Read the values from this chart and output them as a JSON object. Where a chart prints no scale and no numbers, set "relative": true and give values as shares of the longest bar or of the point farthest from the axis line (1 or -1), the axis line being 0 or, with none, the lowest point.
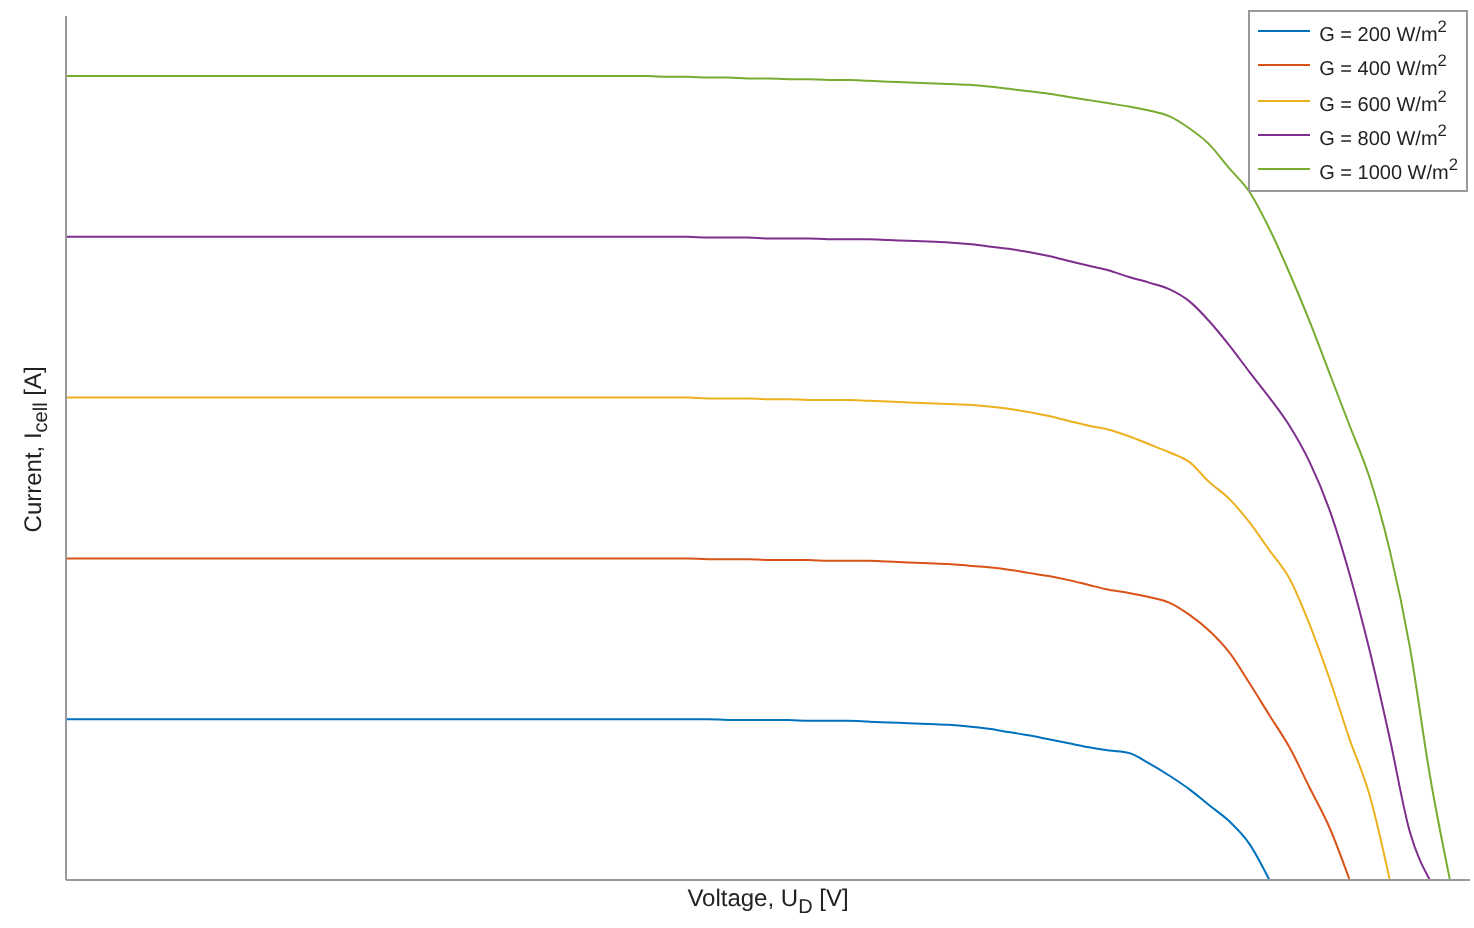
{
  "chart_data": {
    "type": "line",
    "relative": true,
    "xlabel": "Voltage, U$_{D}$ [V]",
    "ylabel": "Current, I$_{cell}$ [A]",
    "legend": "top right",
    "categories": [
      null,
      null,
      null,
      null,
      null,
      null,
      null,
      null,
      null,
      null,
      null,
      null,
      null,
      null,
      null,
      null,
      null,
      null,
      null,
      null,
      null,
      null,
      null,
      null,
      null,
      null,
      null,
      null,
      null,
      null,
      null,
      null,
      null,
      null,
      null,
      null,
      null,
      null,
      null,
      null,
      null,
      null,
      null,
      null,
      null,
      null,
      null,
      null,
      null,
      null,
      null,
      null,
      null,
      null,
      null,
      null,
      null,
      null,
      null,
      null,
      null,
      null,
      null,
      null,
      null,
      null,
      null,
      null,
      null,
      null,
      null
    ],
    "series": [
      {
        "name": "G = 200 W/m$^{2}$",
        "color": "#0072bd",
        "values": [
          0.2,
          0.2,
          0.2,
          0.2,
          0.2,
          0.2,
          0.2,
          0.2,
          0.2,
          0.2,
          0.2,
          0.2,
          0.2,
          0.2,
          0.2,
          0.2,
          0.2,
          0.2,
          0.2,
          0.2,
          0.2,
          0.2,
          0.2,
          0.2,
          0.2,
          0.2,
          0.2,
          0.2,
          0.2,
          0.2,
          0.2,
          0.2,
          0.2,
          0.199,
          0.199,
          0.199,
          0.199,
          0.198,
          0.198,
          0.198,
          0.197,
          0.196,
          0.195,
          0.194,
          0.193,
          0.191,
          0.188,
          0.184,
          0.18,
          0.175,
          0.17,
          0.165,
          0.161,
          0.158,
          0.145,
          0.13,
          0.113,
          0.093,
          0.073,
          0.045,
          0,
          null,
          null,
          null,
          null,
          null,
          null,
          null,
          null,
          null,
          null
        ]
      },
      {
        "name": "G = 400 W/m$^{2}$",
        "color": "#d95319",
        "values": [
          0.4,
          0.4,
          0.4,
          0.4,
          0.4,
          0.4,
          0.4,
          0.4,
          0.4,
          0.4,
          0.4,
          0.4,
          0.4,
          0.4,
          0.4,
          0.4,
          0.4,
          0.4,
          0.4,
          0.4,
          0.4,
          0.4,
          0.4,
          0.4,
          0.4,
          0.4,
          0.4,
          0.4,
          0.4,
          0.4,
          0.4,
          0.4,
          0.399,
          0.399,
          0.399,
          0.398,
          0.398,
          0.398,
          0.397,
          0.397,
          0.397,
          0.396,
          0.395,
          0.394,
          0.393,
          0.391,
          0.389,
          0.386,
          0.382,
          0.378,
          0.373,
          0.367,
          0.361,
          0.357,
          0.352,
          0.345,
          0.33,
          0.31,
          0.283,
          0.245,
          0.205,
          0.165,
          0.115,
          0.065,
          0,
          null,
          null,
          null,
          null,
          null,
          null
        ]
      },
      {
        "name": "G = 600 W/m$^{2}$",
        "color": "#edb120",
        "values": [
          0.6,
          0.6,
          0.6,
          0.6,
          0.6,
          0.6,
          0.6,
          0.6,
          0.6,
          0.6,
          0.6,
          0.6,
          0.6,
          0.6,
          0.6,
          0.6,
          0.6,
          0.6,
          0.6,
          0.6,
          0.6,
          0.6,
          0.6,
          0.6,
          0.6,
          0.6,
          0.6,
          0.6,
          0.6,
          0.6,
          0.6,
          0.6,
          0.599,
          0.599,
          0.599,
          0.598,
          0.598,
          0.597,
          0.597,
          0.597,
          0.596,
          0.595,
          0.594,
          0.593,
          0.592,
          0.591,
          0.589,
          0.586,
          0.582,
          0.577,
          0.571,
          0.565,
          0.56,
          0.552,
          0.542,
          0.532,
          0.52,
          0.495,
          0.474,
          0.445,
          0.41,
          0.375,
          0.318,
          0.25,
          0.175,
          0.105,
          0,
          null,
          null,
          null,
          null
        ]
      },
      {
        "name": "G = 800 W/m$^{2}$",
        "color": "#7e2f8e",
        "values": [
          0.8,
          0.8,
          0.8,
          0.8,
          0.8,
          0.8,
          0.8,
          0.8,
          0.8,
          0.8,
          0.8,
          0.8,
          0.8,
          0.8,
          0.8,
          0.8,
          0.8,
          0.8,
          0.8,
          0.8,
          0.8,
          0.8,
          0.8,
          0.8,
          0.8,
          0.8,
          0.8,
          0.8,
          0.8,
          0.8,
          0.8,
          0.8,
          0.799,
          0.799,
          0.799,
          0.798,
          0.798,
          0.798,
          0.797,
          0.797,
          0.797,
          0.796,
          0.795,
          0.794,
          0.793,
          0.791,
          0.788,
          0.785,
          0.781,
          0.776,
          0.77,
          0.764,
          0.758,
          0.75,
          0.743,
          0.735,
          0.72,
          0.695,
          0.665,
          0.632,
          0.6,
          0.565,
          0.52,
          0.46,
          0.38,
          0.285,
          0.176,
          0.06,
          0,
          null,
          null
        ]
      },
      {
        "name": "G = 1000 W/m$^{2}$",
        "color": "#77ac30",
        "values": [
          1,
          1,
          1,
          1,
          1,
          1,
          1,
          1,
          1,
          1,
          1,
          1,
          1,
          1,
          1,
          1,
          1,
          1,
          1,
          1,
          1,
          1,
          1,
          1,
          1,
          1,
          1,
          1,
          1,
          1,
          0.999,
          0.999,
          0.998,
          0.998,
          0.997,
          0.997,
          0.996,
          0.996,
          0.995,
          0.995,
          0.994,
          0.993,
          0.992,
          0.991,
          0.99,
          0.989,
          0.987,
          0.984,
          0.981,
          0.978,
          0.974,
          0.97,
          0.966,
          0.962,
          0.957,
          0.95,
          0.935,
          0.915,
          0.885,
          0.856,
          0.81,
          0.755,
          0.695,
          0.63,
          0.565,
          0.5,
          0.41,
          0.29,
          0.13,
          0,
          null
        ]
      }
    ]
  }
}
